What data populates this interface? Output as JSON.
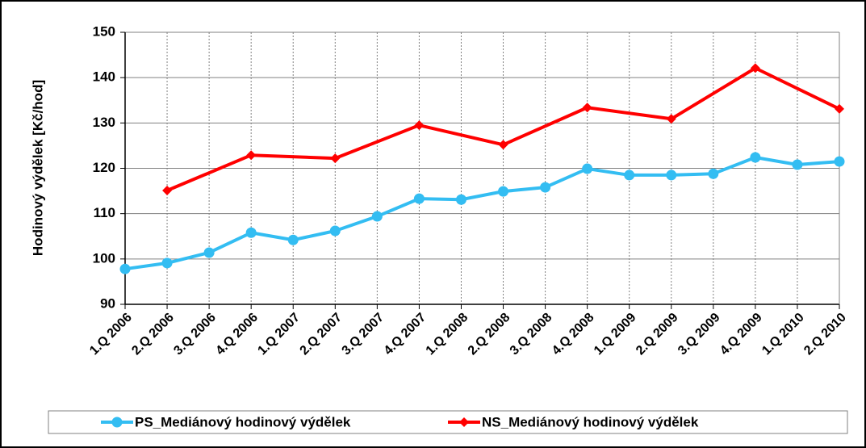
{
  "chart_data": {
    "type": "line",
    "y_label": "Hodinový výdělek [Kč/hod]",
    "categories": [
      "1.Q 2006",
      "2.Q 2006",
      "3.Q 2006",
      "4.Q 2006",
      "1.Q 2007",
      "2.Q 2007",
      "3.Q 2007",
      "4.Q 2007",
      "1.Q 2008",
      "2.Q 2008",
      "3.Q 2008",
      "4.Q 2008",
      "1.Q 2009",
      "2.Q 2009",
      "3.Q 2009",
      "4.Q 2009",
      "1.Q 2010",
      "2.Q 2010"
    ],
    "series": [
      {
        "name": "PS_Mediánový hodinový výdělek",
        "color": "#33bdf2",
        "marker": "circle",
        "values": [
          97.8,
          99.1,
          101.4,
          105.8,
          104.2,
          106.2,
          109.4,
          113.3,
          113.1,
          114.9,
          115.8,
          119.9,
          118.5,
          118.5,
          118.8,
          122.4,
          120.8,
          121.5
        ]
      },
      {
        "name": "NS_Mediánový hodinový výdělek",
        "color": "#ff0000",
        "marker": "diamond",
        "values": [
          null,
          115.1,
          null,
          122.9,
          null,
          122.2,
          null,
          129.5,
          null,
          125.2,
          null,
          133.4,
          null,
          130.9,
          null,
          142.1,
          null,
          133.1
        ]
      }
    ],
    "span_gaps": true,
    "ylim": [
      90,
      150
    ],
    "yticks": [
      90,
      100,
      110,
      120,
      130,
      140,
      150
    ],
    "grid": true,
    "legend": "bottom"
  }
}
